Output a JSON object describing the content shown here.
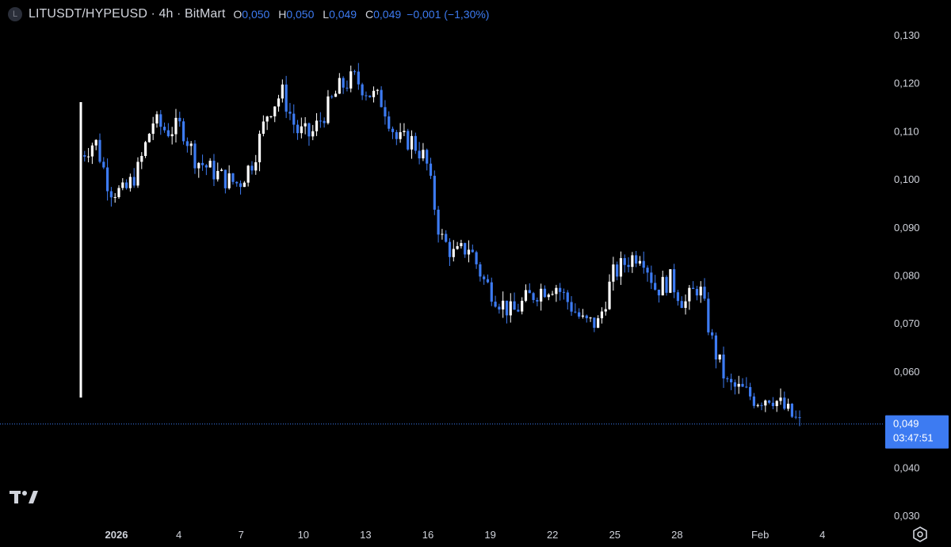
{
  "header": {
    "icon_letter": "L",
    "title": "LITUSDT/HYPEUSD · 4h · BitMart",
    "ohlc": [
      {
        "key": "O",
        "value": "0,050"
      },
      {
        "key": "H",
        "value": "0,050"
      },
      {
        "key": "L",
        "value": "0,049"
      },
      {
        "key": "C",
        "value": "0,049"
      }
    ],
    "change": "−0,001 (−1,30%)"
  },
  "colors": {
    "background": "#000000",
    "up": "#ffffff",
    "down": "#3d7bf2",
    "axis_text": "#d1d4dc",
    "price_tag": "#3d7bf2",
    "price_line": "#3d7bf2"
  },
  "price_tag": {
    "price": "0,049",
    "countdown": "03:47:51"
  },
  "icons": {
    "logo": "tradingview-logo-icon",
    "settings": "settings-icon"
  },
  "chart_data": {
    "type": "candlestick",
    "interval": "4h",
    "ylim": [
      0.03,
      0.13
    ],
    "y_ticks": [
      {
        "value": 0.13,
        "label": "0,130"
      },
      {
        "value": 0.12,
        "label": "0,120"
      },
      {
        "value": 0.11,
        "label": "0,110"
      },
      {
        "value": 0.1,
        "label": "0,100"
      },
      {
        "value": 0.09,
        "label": "0,090"
      },
      {
        "value": 0.08,
        "label": "0,080"
      },
      {
        "value": 0.07,
        "label": "0,070"
      },
      {
        "value": 0.06,
        "label": "0,060"
      },
      {
        "value": 0.04,
        "label": "0,040"
      },
      {
        "value": 0.03,
        "label": "0,030"
      }
    ],
    "x_ticks": [
      {
        "day": 1,
        "label": "2026",
        "bold": true
      },
      {
        "day": 4,
        "label": "4"
      },
      {
        "day": 7,
        "label": "7"
      },
      {
        "day": 10,
        "label": "10"
      },
      {
        "day": 13,
        "label": "13"
      },
      {
        "day": 16,
        "label": "16"
      },
      {
        "day": 19,
        "label": "19"
      },
      {
        "day": 22,
        "label": "22"
      },
      {
        "day": 25,
        "label": "25"
      },
      {
        "day": 28,
        "label": "28"
      },
      {
        "day": 32,
        "label": "Feb"
      },
      {
        "day": 35,
        "label": "4"
      }
    ],
    "last_price": 0.049,
    "anchors": [
      [
        0,
        0.105
      ],
      [
        1,
        0.108
      ],
      [
        2,
        0.098
      ],
      [
        3,
        0.097
      ],
      [
        4,
        0.102
      ],
      [
        5,
        0.112
      ],
      [
        6,
        0.11
      ],
      [
        7,
        0.111
      ],
      [
        8,
        0.104
      ],
      [
        9,
        0.102
      ],
      [
        10,
        0.1
      ],
      [
        11,
        0.099
      ],
      [
        12,
        0.104
      ],
      [
        13,
        0.114
      ],
      [
        14,
        0.118
      ],
      [
        15,
        0.11
      ],
      [
        16,
        0.109
      ],
      [
        17,
        0.114
      ],
      [
        18,
        0.119
      ],
      [
        19,
        0.121
      ],
      [
        20,
        0.118
      ],
      [
        21,
        0.116
      ],
      [
        22,
        0.108
      ],
      [
        23,
        0.108
      ],
      [
        24,
        0.104
      ],
      [
        25,
        0.088
      ],
      [
        26,
        0.084
      ],
      [
        27,
        0.086
      ],
      [
        28,
        0.079
      ],
      [
        29,
        0.075
      ],
      [
        30,
        0.072
      ],
      [
        31,
        0.075
      ],
      [
        32,
        0.077
      ],
      [
        33,
        0.078
      ],
      [
        34,
        0.074
      ],
      [
        35,
        0.07
      ],
      [
        36,
        0.07
      ],
      [
        37,
        0.08
      ],
      [
        38,
        0.083
      ],
      [
        39,
        0.085
      ],
      [
        40,
        0.077
      ],
      [
        41,
        0.079
      ],
      [
        42,
        0.074
      ],
      [
        43,
        0.078
      ],
      [
        44,
        0.065
      ],
      [
        45,
        0.057
      ],
      [
        46,
        0.056
      ],
      [
        47,
        0.054
      ],
      [
        48,
        0.055
      ],
      [
        49,
        0.052
      ],
      [
        50,
        0.049
      ]
    ]
  }
}
